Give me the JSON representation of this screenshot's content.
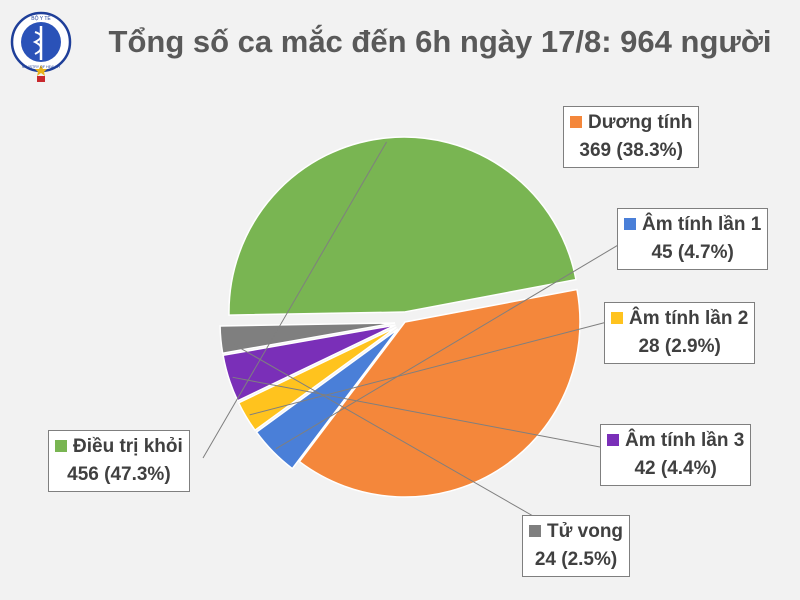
{
  "title": "Tổng số ca mắc đến 6h ngày 17/8: 964 người",
  "logo": {
    "top_text": "BỘ Y TẾ",
    "bottom_text": "MINISTRY OF HEALTH",
    "icon": "caduceus-icon"
  },
  "chart_data": {
    "type": "pie",
    "total": 964,
    "slices": [
      {
        "name": "Dương tính",
        "value": 369,
        "percent": "38.3%",
        "label": "369 (38.3%)",
        "color": "#f4873b",
        "exploded": false
      },
      {
        "name": "Âm tính lần 1",
        "value": 45,
        "percent": "4.7%",
        "label": "45 (4.7%)",
        "color": "#4a7fd8",
        "exploded": true
      },
      {
        "name": "Âm tính lần 2",
        "value": 28,
        "percent": "2.9%",
        "label": "28 (2.9%)",
        "color": "#ffc31e",
        "exploded": true
      },
      {
        "name": "Âm tính lần 3",
        "value": 42,
        "percent": "4.4%",
        "label": "42 (4.4%)",
        "color": "#7a2fb8",
        "exploded": true
      },
      {
        "name": "Tử vong",
        "value": 24,
        "percent": "2.5%",
        "label": "24 (2.5%)",
        "color": "#7f7f7f",
        "exploded": true
      },
      {
        "name": "Điều trị khỏi",
        "value": 456,
        "percent": "47.3%",
        "label": "456 (47.3%)",
        "color": "#79b552",
        "exploded": true
      }
    ]
  }
}
